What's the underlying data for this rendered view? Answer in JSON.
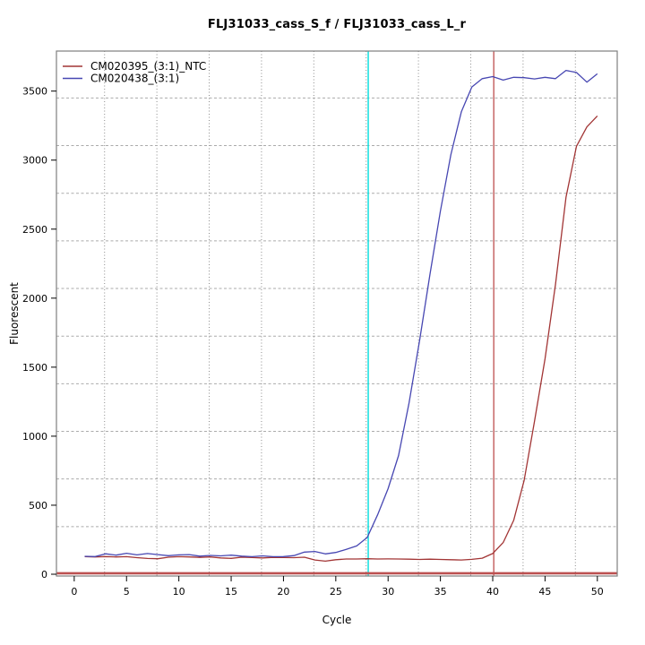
{
  "chart_data": {
    "type": "line",
    "title": "FLJ31033_cass_S_f / FLJ31033_cass_L_r",
    "xlabel": "Cycle",
    "ylabel": "Fluorescent",
    "xlim": [
      -1.7,
      51.9
    ],
    "ylim": [
      -13,
      3790
    ],
    "xticks": [
      0,
      5,
      10,
      15,
      20,
      25,
      30,
      35,
      40,
      45,
      50
    ],
    "x_tick_labels": [
      "0",
      "5",
      "10",
      "15",
      "20",
      "25",
      "30",
      "35",
      "40",
      "45",
      "50"
    ],
    "yticks": [
      0,
      500,
      1000,
      1500,
      2000,
      2500,
      3000,
      3500
    ],
    "y_tick_labels": [
      "0",
      "500",
      "1000",
      "1500",
      "2000",
      "2500",
      "3000",
      "3500"
    ],
    "x": [
      1,
      2,
      3,
      4,
      5,
      6,
      7,
      8,
      9,
      10,
      11,
      12,
      13,
      14,
      15,
      16,
      17,
      18,
      19,
      20,
      21,
      22,
      23,
      24,
      25,
      26,
      27,
      28,
      29,
      30,
      31,
      32,
      33,
      34,
      35,
      36,
      37,
      38,
      39,
      40,
      41,
      42,
      43,
      44,
      45,
      46,
      47,
      48,
      49,
      50
    ],
    "series": [
      {
        "name": "CM020395_(3:1)_NTC",
        "color": "#a23535",
        "values": [
          128,
          125,
          128,
          125,
          127,
          120,
          114,
          112,
          123,
          127,
          125,
          122,
          125,
          118,
          115,
          123,
          121,
          118,
          122,
          121,
          120,
          123,
          103,
          95,
          105,
          110,
          110,
          112,
          110,
          111,
          110,
          109,
          107,
          109,
          107,
          105,
          103,
          108,
          116,
          150,
          230,
          390,
          680,
          1110,
          1560,
          2100,
          2730,
          3100,
          3240,
          3320
        ]
      },
      {
        "name": "CM020438_(3:1)",
        "color": "#4747b2",
        "values": [
          130,
          128,
          148,
          138,
          152,
          140,
          150,
          142,
          134,
          140,
          142,
          131,
          136,
          133,
          138,
          131,
          127,
          133,
          127,
          128,
          135,
          160,
          165,
          147,
          158,
          180,
          205,
          266,
          430,
          620,
          860,
          1240,
          1690,
          2170,
          2630,
          3040,
          3350,
          3530,
          3590,
          3605,
          3580,
          3600,
          3597,
          3588,
          3600,
          3590,
          3650,
          3635,
          3565,
          3625
        ]
      }
    ],
    "legend_position": "top-left",
    "grid": {
      "vertical_at": [
        2.9,
        7.9,
        12.9,
        17.9,
        22.9,
        27.9,
        32.9,
        37.9,
        42.9,
        47.9
      ],
      "horizontal_at": [
        345,
        690,
        1035,
        1380,
        1725,
        2070,
        2415,
        2760,
        3105,
        3450
      ],
      "vertical_color": "#8c8c8c",
      "horizontal_color": "#ababab"
    },
    "markers": {
      "cyan_vline_cycle": 28.1,
      "cyan_vline_color": "#00dede",
      "red_vline_cycle": 40.1,
      "red_vline_color": "#c25b5b",
      "threshold_value": 7,
      "threshold_color": "#bc5151"
    },
    "axis_color": "#7f7f7f",
    "tick_color": "#000000"
  }
}
